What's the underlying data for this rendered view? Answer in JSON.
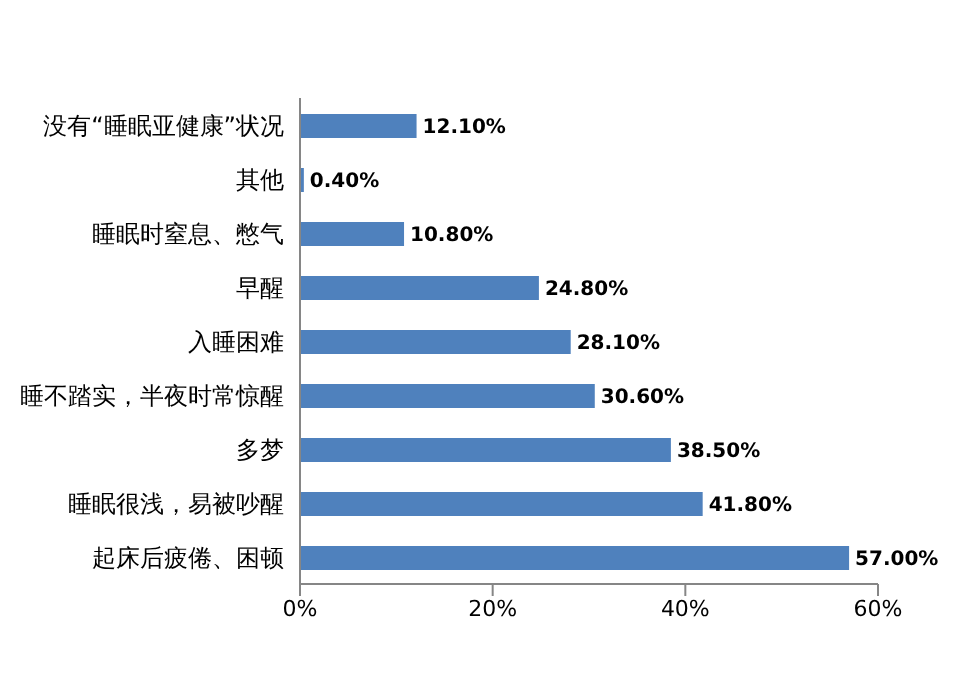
{
  "chart_data": {
    "type": "bar",
    "orientation": "horizontal",
    "categories": [
      "没有“睡眠亚健康”状况",
      "其他",
      "睡眠时窒息、憋气",
      "早醒",
      "入睡困难",
      "睡不踏实，半夜时常惊醒",
      "多梦",
      "睡眠很浅，易被吵醒",
      "起床后疲倦、困顿"
    ],
    "values": [
      12.1,
      0.4,
      10.8,
      24.8,
      28.1,
      30.6,
      38.5,
      41.8,
      57
    ],
    "value_labels": [
      "12.10%",
      "0.40%",
      "10.80%",
      "24.80%",
      "28.10%",
      "30.60%",
      "38.50%",
      "41.80%",
      "57.00%"
    ],
    "color": "#4f81bd",
    "xlim": [
      0,
      60
    ],
    "xticks": [
      {
        "value": 0,
        "label": "0%"
      },
      {
        "value": 20,
        "label": "20%"
      },
      {
        "value": 40,
        "label": "40%"
      },
      {
        "value": 60,
        "label": "60%"
      }
    ],
    "grid": false,
    "legend": false
  }
}
